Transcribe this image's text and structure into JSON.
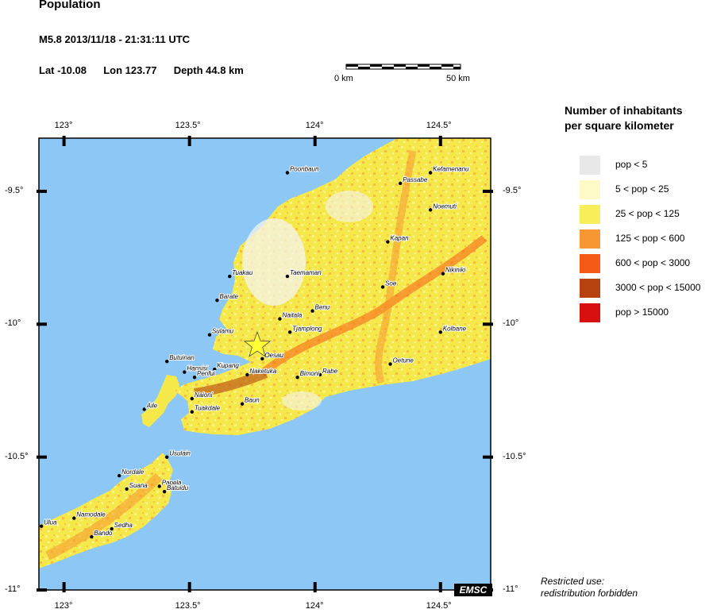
{
  "header": {
    "title": "Population",
    "event_line": "M5.8  2013/11/18 - 21:31:11 UTC",
    "lat": "Lat -10.08",
    "lon": "Lon 123.77",
    "depth": "Depth  44.8 km"
  },
  "scale_bar": {
    "left_label": "0 km",
    "right_label": "50 km"
  },
  "map": {
    "lon_range": [
      122.9,
      124.7
    ],
    "lat_range": [
      -11.0,
      -9.3
    ],
    "lon_ticks": [
      "123°",
      "123.5°",
      "124°",
      "124.5°"
    ],
    "lat_ticks": [
      "-9.5°",
      "-10°",
      "-10.5°",
      "-11°"
    ],
    "sea_color": "#8cc7f5",
    "land_base_color": "#f5e84a",
    "epicenter": {
      "lon": 123.77,
      "lat": -10.08,
      "icon": "star-icon",
      "color": "#ffff33"
    },
    "badge": "EMSC",
    "places": [
      {
        "name": "Poonbaun",
        "lon": 123.89,
        "lat": -9.43
      },
      {
        "name": "Passabe",
        "lon": 124.34,
        "lat": -9.47
      },
      {
        "name": "Kefamenanu",
        "lon": 124.46,
        "lat": -9.43
      },
      {
        "name": "Noemuti",
        "lon": 124.46,
        "lat": -9.57
      },
      {
        "name": "Kapan",
        "lon": 124.29,
        "lat": -9.69
      },
      {
        "name": "Nikiniki",
        "lon": 124.51,
        "lat": -9.81
      },
      {
        "name": "Tuakau",
        "lon": 123.66,
        "lat": -9.82
      },
      {
        "name": "Taemaman",
        "lon": 123.89,
        "lat": -9.82
      },
      {
        "name": "Soe",
        "lon": 124.27,
        "lat": -9.86
      },
      {
        "name": "Barate",
        "lon": 123.61,
        "lat": -9.91
      },
      {
        "name": "Benu",
        "lon": 123.99,
        "lat": -9.95
      },
      {
        "name": "Naitala",
        "lon": 123.86,
        "lat": -9.98
      },
      {
        "name": "Sulamu",
        "lon": 123.58,
        "lat": -10.04
      },
      {
        "name": "Tjamplong",
        "lon": 123.9,
        "lat": -10.03
      },
      {
        "name": "Kolbane",
        "lon": 124.5,
        "lat": -10.03
      },
      {
        "name": "Oesau",
        "lon": 123.79,
        "lat": -10.13
      },
      {
        "name": "Oetune",
        "lon": 124.3,
        "lat": -10.15
      },
      {
        "name": "Butuinan",
        "lon": 123.41,
        "lat": -10.14
      },
      {
        "name": "Hansisi",
        "lon": 123.48,
        "lat": -10.18
      },
      {
        "name": "Kupang",
        "lon": 123.6,
        "lat": -10.17
      },
      {
        "name": "Penfui",
        "lon": 123.52,
        "lat": -10.2
      },
      {
        "name": "Naketuka",
        "lon": 123.73,
        "lat": -10.19
      },
      {
        "name": "Rabe",
        "lon": 124.02,
        "lat": -10.19
      },
      {
        "name": "Bimoni",
        "lon": 123.93,
        "lat": -10.2
      },
      {
        "name": "Naioni",
        "lon": 123.51,
        "lat": -10.28
      },
      {
        "name": "Tuakdale",
        "lon": 123.51,
        "lat": -10.33
      },
      {
        "name": "Baun",
        "lon": 123.71,
        "lat": -10.3
      },
      {
        "name": "Aile",
        "lon": 123.32,
        "lat": -10.32
      },
      {
        "name": "Usulain",
        "lon": 123.41,
        "lat": -10.5
      },
      {
        "name": "Nordale",
        "lon": 123.22,
        "lat": -10.57
      },
      {
        "name": "Papela",
        "lon": 123.38,
        "lat": -10.61
      },
      {
        "name": "Suana",
        "lon": 123.25,
        "lat": -10.62
      },
      {
        "name": "Batuidu",
        "lon": 123.4,
        "lat": -10.63
      },
      {
        "name": "Namodale",
        "lon": 123.04,
        "lat": -10.73
      },
      {
        "name": "Ulua",
        "lon": 122.91,
        "lat": -10.76
      },
      {
        "name": "Sedha",
        "lon": 123.19,
        "lat": -10.77
      },
      {
        "name": "Bando",
        "lon": 123.11,
        "lat": -10.8
      }
    ]
  },
  "legend": {
    "title_line1": "Number of inhabitants",
    "title_line2": "per square kilometer",
    "items": [
      {
        "label": "pop < 5",
        "color": "#e8e8e8"
      },
      {
        "label": "5 < pop < 25",
        "color": "#fdfac8"
      },
      {
        "label": "25 < pop < 125",
        "color": "#f6ee5a"
      },
      {
        "label": "125 < pop < 600",
        "color": "#f79632"
      },
      {
        "label": "600 < pop < 3000",
        "color": "#f55b14"
      },
      {
        "label": "3000 < pop < 15000",
        "color": "#b5420f"
      },
      {
        "label": "pop > 15000",
        "color": "#d81010"
      }
    ]
  },
  "note": {
    "line1": "Restricted use:",
    "line2": "redistribution forbidden"
  }
}
